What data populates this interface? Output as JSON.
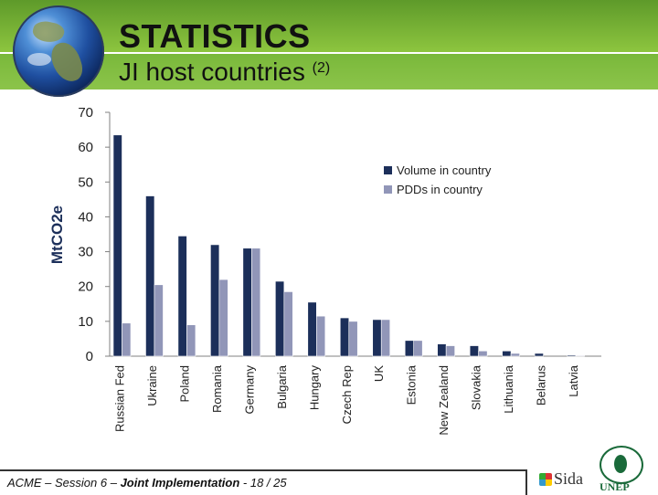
{
  "slide": {
    "title": "STATISTICS",
    "subtitle": "JI host countries",
    "subtitle_note": "(2)",
    "footer_prefix": "ACME – Session 6 – ",
    "footer_bold": "Joint Implementation",
    "footer_suffix": " - 18 / 25",
    "logos": {
      "sida": "Sida",
      "unep": "UNEP"
    }
  },
  "colors": {
    "header_green": "#8cc44a",
    "volume": "#1c2f5a",
    "pdds": "#9196b8",
    "axis": "#808080"
  },
  "chart_data": {
    "type": "bar",
    "ylabel": "MtCO2e",
    "ylim": [
      0,
      70
    ],
    "yticks": [
      "0",
      "10",
      "20",
      "30",
      "40",
      "50",
      "60",
      "70"
    ],
    "grid": false,
    "legend_position": "right",
    "categories": [
      "Russian Fed",
      "Ukraine",
      "Poland",
      "Romania",
      "Germany",
      "Bulgaria",
      "Hungary",
      "Czech Rep",
      "UK",
      "Estonia",
      "New Zealand",
      "Slovakia",
      "Lithuania",
      "Belarus",
      "Latvia"
    ],
    "series": [
      {
        "name": "Volume in country",
        "values": [
          63.5,
          46,
          34.5,
          32,
          31,
          21.5,
          15.5,
          11,
          10.5,
          4.5,
          3.5,
          3,
          1.5,
          0.8,
          0.3
        ]
      },
      {
        "name": "PDDs in country",
        "values": [
          9.5,
          20.5,
          9,
          22,
          31,
          18.5,
          11.5,
          10,
          10.5,
          4.5,
          3,
          1.5,
          0.8,
          0,
          0.2
        ]
      }
    ]
  }
}
